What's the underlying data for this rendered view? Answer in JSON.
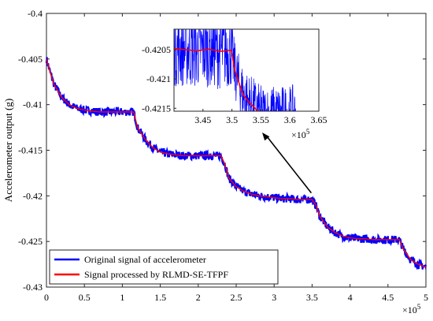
{
  "chart_data": {
    "type": "line",
    "ylabel": "Accelerometer output (g)",
    "xlabel": "",
    "x_scale_label": "×10",
    "x_scale_exp": "5",
    "xlim": [
      0,
      5
    ],
    "ylim": [
      -0.43,
      -0.4
    ],
    "x_ticks": [
      "0",
      "0.5",
      "1",
      "1.5",
      "2",
      "2.5",
      "3",
      "3.5",
      "4",
      "4.5",
      "5"
    ],
    "y_ticks": [
      "-0.4",
      "-0.405",
      "-0.41",
      "-0.415",
      "-0.42",
      "-0.425",
      "-0.43"
    ],
    "grid": false,
    "legend_position": "bottom-left",
    "colors": {
      "raw": "#0000ff",
      "filtered": "#ff0000"
    },
    "series": [
      {
        "name": "Original signal of accelerometer",
        "x": [
          0,
          0.05,
          0.1,
          0.2,
          0.3,
          0.4,
          0.5,
          0.6,
          0.7,
          0.8,
          0.9,
          1.0,
          1.1,
          1.15,
          1.2,
          1.3,
          1.4,
          1.5,
          1.6,
          1.7,
          1.8,
          1.9,
          2.0,
          2.1,
          2.2,
          2.3,
          2.35,
          2.4,
          2.5,
          2.6,
          2.7,
          2.8,
          2.9,
          3.0,
          3.1,
          3.2,
          3.3,
          3.4,
          3.5,
          3.55,
          3.6,
          3.7,
          3.8,
          3.9,
          4.0,
          4.1,
          4.2,
          4.3,
          4.4,
          4.5,
          4.6,
          4.65,
          4.7,
          4.8,
          4.9,
          5.0
        ],
        "y": [
          -0.405,
          -0.4065,
          -0.4078,
          -0.4092,
          -0.41,
          -0.4104,
          -0.4106,
          -0.4107,
          -0.4108,
          -0.4108,
          -0.4108,
          -0.4108,
          -0.4108,
          -0.4108,
          -0.4125,
          -0.4138,
          -0.4147,
          -0.4152,
          -0.4154,
          -0.4155,
          -0.4156,
          -0.4156,
          -0.4156,
          -0.4156,
          -0.4156,
          -0.4156,
          -0.4165,
          -0.418,
          -0.419,
          -0.4195,
          -0.4198,
          -0.42,
          -0.4201,
          -0.4202,
          -0.4203,
          -0.4203,
          -0.4204,
          -0.4204,
          -0.4204,
          -0.421,
          -0.4222,
          -0.4234,
          -0.424,
          -0.4244,
          -0.4246,
          -0.4247,
          -0.4247,
          -0.4248,
          -0.4248,
          -0.4248,
          -0.4248,
          -0.4248,
          -0.4258,
          -0.427,
          -0.4275,
          -0.4278
        ]
      },
      {
        "name": "Signal processed by RLMD-SE-TFPF",
        "x": [
          0,
          0.05,
          0.1,
          0.2,
          0.3,
          0.4,
          0.5,
          0.6,
          0.7,
          0.8,
          0.9,
          1.0,
          1.1,
          1.15,
          1.2,
          1.3,
          1.4,
          1.5,
          1.6,
          1.7,
          1.8,
          1.9,
          2.0,
          2.1,
          2.2,
          2.3,
          2.35,
          2.4,
          2.5,
          2.6,
          2.7,
          2.8,
          2.9,
          3.0,
          3.1,
          3.2,
          3.3,
          3.4,
          3.5,
          3.55,
          3.6,
          3.7,
          3.8,
          3.9,
          4.0,
          4.1,
          4.2,
          4.3,
          4.4,
          4.5,
          4.6,
          4.65,
          4.7,
          4.8,
          4.9,
          5.0
        ],
        "y": [
          -0.405,
          -0.4065,
          -0.4078,
          -0.4092,
          -0.41,
          -0.4104,
          -0.4106,
          -0.4107,
          -0.4108,
          -0.4108,
          -0.4108,
          -0.4108,
          -0.4108,
          -0.4108,
          -0.4125,
          -0.4138,
          -0.4147,
          -0.4152,
          -0.4154,
          -0.4155,
          -0.4156,
          -0.4156,
          -0.4156,
          -0.4156,
          -0.4156,
          -0.4156,
          -0.4165,
          -0.418,
          -0.419,
          -0.4195,
          -0.4198,
          -0.42,
          -0.4201,
          -0.4202,
          -0.4203,
          -0.4203,
          -0.4204,
          -0.4204,
          -0.4204,
          -0.421,
          -0.4222,
          -0.4234,
          -0.424,
          -0.4244,
          -0.4246,
          -0.4247,
          -0.4247,
          -0.4248,
          -0.4248,
          -0.4248,
          -0.4248,
          -0.4248,
          -0.4258,
          -0.427,
          -0.4275,
          -0.4278
        ]
      }
    ],
    "inset": {
      "xlim": [
        3.4,
        3.65
      ],
      "ylim": [
        -0.42155,
        -0.42015
      ],
      "x_ticks": [
        "3.45",
        "3.5",
        "3.55",
        "3.6",
        "3.65"
      ],
      "y_ticks": [
        "-0.4205",
        "-0.421",
        "-0.4215"
      ],
      "x_scale_label": "×10",
      "x_scale_exp": "5",
      "filtered": {
        "x": [
          3.4,
          3.42,
          3.44,
          3.46,
          3.48,
          3.499,
          3.5,
          3.505,
          3.51,
          3.515,
          3.52,
          3.53,
          3.54,
          3.55
        ],
        "y": [
          -0.42048,
          -0.4205,
          -0.42052,
          -0.42049,
          -0.42053,
          -0.42051,
          -0.42058,
          -0.42085,
          -0.421,
          -0.42115,
          -0.42128,
          -0.4214,
          -0.4215,
          -0.4216
        ]
      }
    }
  }
}
